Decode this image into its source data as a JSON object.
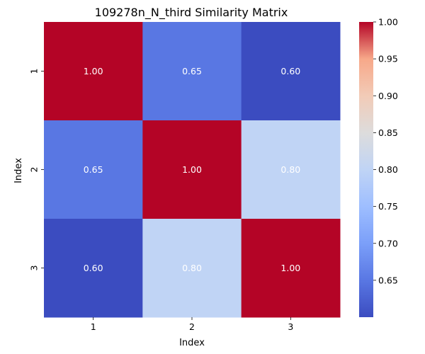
{
  "chart_data": {
    "type": "heatmap",
    "title": "109278n_N_third Similarity Matrix",
    "xlabel": "Index",
    "ylabel": "Index",
    "x_categories": [
      "1",
      "2",
      "3"
    ],
    "y_categories": [
      "1",
      "2",
      "3"
    ],
    "values": [
      [
        1.0,
        0.65,
        0.6
      ],
      [
        0.65,
        1.0,
        0.8
      ],
      [
        0.6,
        0.8,
        1.0
      ]
    ],
    "cell_labels": [
      [
        "1.00",
        "0.65",
        "0.60"
      ],
      [
        "0.65",
        "1.00",
        "0.80"
      ],
      [
        "0.60",
        "0.80",
        "1.00"
      ]
    ],
    "colormap": "coolwarm",
    "color_range": [
      0.6,
      1.0
    ],
    "colorbar_ticks": [
      "1.00",
      "0.95",
      "0.90",
      "0.85",
      "0.80",
      "0.75",
      "0.70",
      "0.65"
    ],
    "colorbar_tick_values": [
      1.0,
      0.95,
      0.9,
      0.85,
      0.8,
      0.75,
      0.7,
      0.65
    ],
    "grid": false
  }
}
